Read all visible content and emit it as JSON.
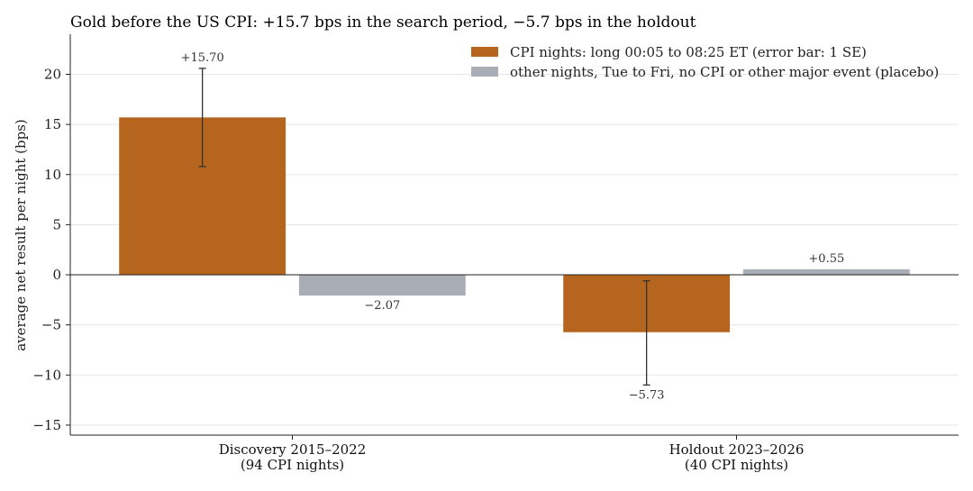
{
  "chart_data": {
    "type": "bar",
    "title": "Gold before the US CPI: +15.7 bps in the search period, −5.7 bps in the holdout",
    "xlabel": "",
    "ylabel": "average net result per night (bps)",
    "ylim": [
      -16,
      24
    ],
    "yticks": [
      -15,
      -10,
      -5,
      0,
      5,
      10,
      15,
      20
    ],
    "ytick_labels": [
      "−15",
      "−10",
      "−5",
      "0",
      "5",
      "10",
      "15",
      "20"
    ],
    "grid": "horizontal",
    "legend_position": "top-right",
    "categories": [
      {
        "line1": "Discovery 2015–2022",
        "line2": "(94 CPI nights)"
      },
      {
        "line1": "Holdout 2023–2026",
        "line2": "(40 CPI nights)"
      }
    ],
    "series": [
      {
        "name": "CPI nights: long 00:05 to 08:25 ET (error bar: 1 SE)",
        "color": "#b5651d",
        "values": [
          15.7,
          -5.73
        ],
        "labels": [
          "+15.70",
          "−5.73"
        ],
        "error_low": [
          10.8,
          -11.0
        ],
        "error_high": [
          20.6,
          -0.6
        ]
      },
      {
        "name": "other nights, Tue to Fri, no CPI or other major event (placebo)",
        "color": "#a9adb6",
        "values": [
          -2.07,
          0.55
        ],
        "labels": [
          "−2.07",
          "+0.55"
        ]
      }
    ]
  }
}
